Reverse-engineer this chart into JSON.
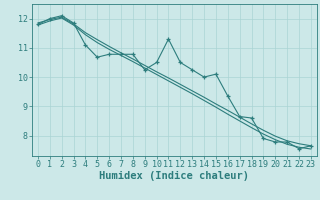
{
  "x": [
    0,
    1,
    2,
    3,
    4,
    5,
    6,
    7,
    8,
    9,
    10,
    11,
    12,
    13,
    14,
    15,
    16,
    17,
    18,
    19,
    20,
    21,
    22,
    23
  ],
  "y_data": [
    11.8,
    12.0,
    12.1,
    11.85,
    11.1,
    10.68,
    10.78,
    10.78,
    10.78,
    10.25,
    10.5,
    11.3,
    10.5,
    10.25,
    10.0,
    10.1,
    9.35,
    8.65,
    8.6,
    7.9,
    7.78,
    7.78,
    7.55,
    7.65
  ],
  "y_trend": [
    11.85,
    11.97,
    12.05,
    11.82,
    11.52,
    11.28,
    11.05,
    10.83,
    10.62,
    10.4,
    10.18,
    9.97,
    9.75,
    9.53,
    9.31,
    9.08,
    8.86,
    8.63,
    8.4,
    8.18,
    7.98,
    7.82,
    7.72,
    7.65
  ],
  "y_trend2": [
    11.78,
    11.92,
    12.02,
    11.78,
    11.45,
    11.18,
    10.95,
    10.74,
    10.53,
    10.31,
    10.09,
    9.87,
    9.65,
    9.43,
    9.2,
    8.97,
    8.73,
    8.5,
    8.27,
    8.05,
    7.86,
    7.7,
    7.6,
    7.54
  ],
  "line_color": "#2d7d7d",
  "bg_color": "#cce8e8",
  "grid_color": "#aad4d4",
  "xlabel": "Humidex (Indice chaleur)",
  "xlim": [
    -0.5,
    23.5
  ],
  "ylim": [
    7.3,
    12.5
  ],
  "yticks": [
    8,
    9,
    10,
    11,
    12
  ],
  "xticks": [
    0,
    1,
    2,
    3,
    4,
    5,
    6,
    7,
    8,
    9,
    10,
    11,
    12,
    13,
    14,
    15,
    16,
    17,
    18,
    19,
    20,
    21,
    22,
    23
  ],
  "font_size": 6,
  "xlabel_size": 7.5
}
